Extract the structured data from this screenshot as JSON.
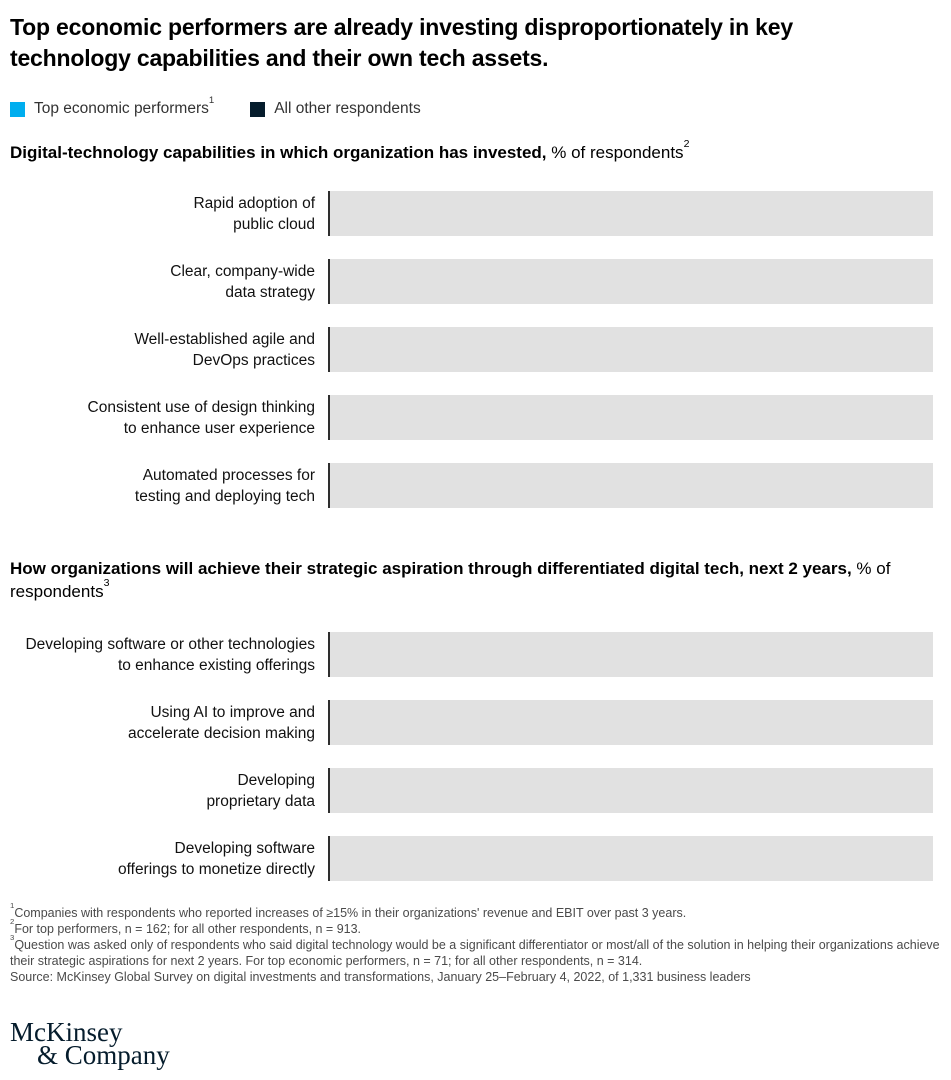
{
  "title": "Top economic performers are already investing disproportionately in key technology capabilities and their own tech assets.",
  "legend": {
    "items": [
      {
        "label": "Top economic performers",
        "superscript": "1",
        "color": "#00aeef"
      },
      {
        "label": "All other respondents",
        "superscript": "",
        "color": "#051c2c"
      }
    ]
  },
  "chart_data": [
    {
      "type": "bar",
      "orientation": "horizontal",
      "title_bold": "Digital-technology capabilities in which organization has invested,",
      "title_regular": " % of respondents",
      "title_footnote_marker": "2",
      "categories": [
        "Rapid adoption of\npublic cloud",
        "Clear, company-wide\ndata strategy",
        "Well-established agile and\nDevOps practices",
        "Consistent use of design thinking\nto enhance user experience",
        "Automated processes for\ntesting and deploying tech"
      ],
      "series": [
        {
          "name": "Top economic performers",
          "values": null
        },
        {
          "name": "All other respondents",
          "values": null
        }
      ],
      "values_note": "No bar values are rendered in the screenshot; each bar area appears as a blank light-gray placeholder block.",
      "bar_placeholder_color": "#e1e1e1",
      "axis_line_color": "#2e2e2e"
    },
    {
      "type": "bar",
      "orientation": "horizontal",
      "title_bold": "How organizations will achieve their strategic aspiration through differentiated digital tech, next 2 years,",
      "title_regular": " % of respondents",
      "title_footnote_marker": "3",
      "categories": [
        "Developing software or other technologies\nto enhance existing offerings",
        "Using AI to improve and\naccelerate decision making",
        "Developing\nproprietary data",
        "Developing software\nofferings to monetize directly"
      ],
      "series": [
        {
          "name": "Top economic performers",
          "values": null
        },
        {
          "name": "All other respondents",
          "values": null
        }
      ],
      "values_note": "No bar values are rendered in the screenshot; each bar area appears as a blank light-gray placeholder block.",
      "bar_placeholder_color": "#e1e1e1",
      "axis_line_color": "#2e2e2e"
    }
  ],
  "footnotes": [
    {
      "sup": "1",
      "text": "Companies with respondents who reported increases of ≥15% in their organizations' revenue and EBIT over past 3 years."
    },
    {
      "sup": "2",
      "text": "For top performers, n = 162; for all other respondents, n = 913."
    },
    {
      "sup": "3",
      "text": "Question was asked only of respondents who said digital technology would be a significant differentiator or most/all of the solution in helping their organizations achieve their strategic aspirations for next 2 years. For top economic performers, n = 71; for all other respondents, n = 314."
    },
    {
      "sup": "",
      "text": "Source: McKinsey Global Survey on digital investments and transformations, January 25–February 4, 2022, of 1,331 business leaders"
    }
  ],
  "logo": {
    "line1": "McKinsey",
    "line2": "& Company"
  }
}
